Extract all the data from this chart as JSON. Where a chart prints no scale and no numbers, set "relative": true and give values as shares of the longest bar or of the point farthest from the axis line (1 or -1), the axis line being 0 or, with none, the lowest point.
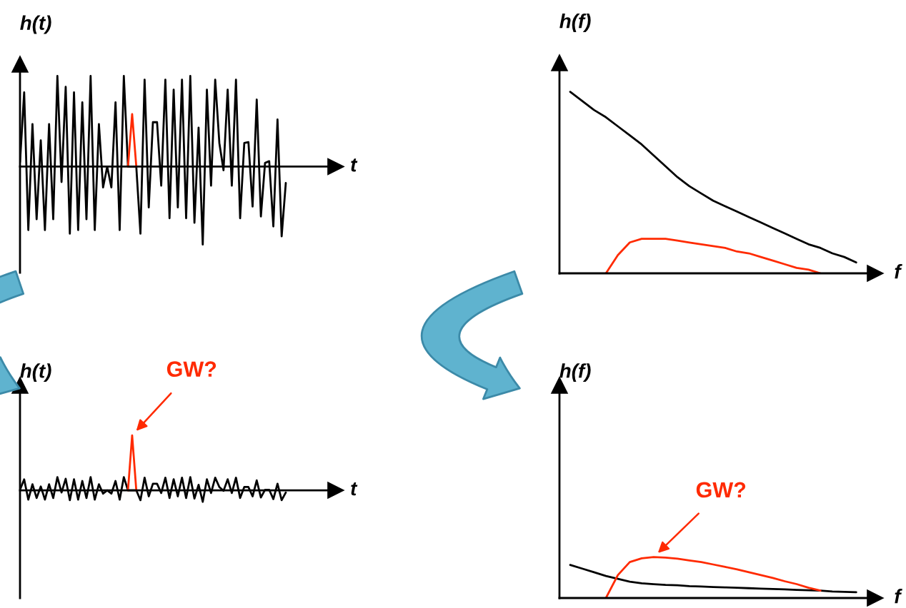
{
  "chart_data": [
    {
      "type": "line",
      "relative": true,
      "ylabel": "h(t)",
      "xlabel": "t",
      "categories": [
        null,
        null,
        null,
        null,
        null,
        null,
        null,
        null,
        null,
        null,
        null,
        null,
        null,
        null,
        null,
        null,
        null,
        null,
        null,
        null,
        null,
        null,
        null,
        null,
        null,
        null,
        null,
        null,
        null,
        null,
        null,
        null,
        null,
        null,
        null,
        null,
        null,
        null,
        null,
        null,
        null,
        null,
        null,
        null,
        null,
        null,
        null,
        null,
        null,
        null,
        null,
        null,
        null,
        null,
        null,
        null,
        null,
        null,
        null,
        null,
        null,
        null,
        null,
        null,
        null
      ],
      "series": [
        {
          "color": "#000000",
          "values": [
            0.05,
            0.82,
            -0.7,
            0.47,
            -0.58,
            0.29,
            -0.7,
            0.47,
            -0.58,
            1.0,
            -0.17,
            0.88,
            -0.74,
            0.82,
            -0.7,
            0.71,
            -0.58,
            1.0,
            -0.7,
            0.47,
            -0.23,
            0,
            -0.23,
            0.71,
            -0.7,
            1.0,
            0,
            0,
            0,
            -0.74,
            0.96,
            -0.45,
            0.49,
            0.49,
            -0.21,
            0.96,
            -0.57,
            0.85,
            -0.45,
            0.96,
            -0.57,
            1.0,
            -0.62,
            0.43,
            -0.86,
            0.85,
            -0.21,
            0.96,
            0.26,
            -0.04,
            0.85,
            -0.21,
            0.96,
            -0.57,
            0.26,
            0.27,
            -0.44,
            0.74,
            -0.55,
            0.04,
            0.06,
            -0.66,
            0.52,
            -0.77,
            -0.18
          ]
        },
        {
          "color": "#ff2a00",
          "values": [
            null,
            null,
            null,
            null,
            null,
            null,
            null,
            null,
            null,
            null,
            null,
            null,
            null,
            null,
            null,
            null,
            null,
            null,
            null,
            null,
            null,
            null,
            null,
            null,
            null,
            null,
            0,
            0.58,
            0,
            null,
            null,
            null,
            null,
            null,
            null,
            null,
            null,
            null,
            null,
            null,
            null,
            null,
            null,
            null,
            null,
            null,
            null,
            null,
            null,
            null,
            null,
            null,
            null,
            null,
            null,
            null,
            null,
            null,
            null,
            null,
            null,
            null,
            null,
            null,
            null
          ]
        }
      ]
    },
    {
      "type": "line",
      "relative": true,
      "ylabel": "h(f)",
      "xlabel": "f",
      "categories": [
        null,
        null,
        null,
        null,
        null,
        null,
        null,
        null,
        null,
        null,
        null,
        null,
        null,
        null,
        null,
        null,
        null,
        null,
        null,
        null,
        null,
        null,
        null,
        null,
        null
      ],
      "series": [
        {
          "color": "#000000",
          "values": [
            1.0,
            0.95,
            0.9,
            0.86,
            0.81,
            0.76,
            0.71,
            0.65,
            0.59,
            0.53,
            0.48,
            0.44,
            0.4,
            0.37,
            0.34,
            0.31,
            0.28,
            0.25,
            0.22,
            0.19,
            0.16,
            0.14,
            0.11,
            0.09,
            0.06
          ]
        },
        {
          "color": "#ff2a00",
          "values": [
            null,
            null,
            null,
            0,
            0.1,
            0.17,
            0.19,
            0.19,
            0.19,
            0.18,
            0.17,
            0.16,
            0.15,
            0.14,
            0.12,
            0.11,
            0.09,
            0.07,
            0.05,
            0.03,
            0.02,
            0,
            null,
            null,
            null
          ]
        }
      ]
    },
    {
      "type": "line",
      "relative": true,
      "ylabel": "h(t)",
      "xlabel": "t",
      "annotations": [
        "GW?"
      ],
      "categories": [
        null,
        null,
        null,
        null,
        null,
        null,
        null,
        null,
        null,
        null,
        null,
        null,
        null,
        null,
        null,
        null,
        null,
        null,
        null,
        null,
        null,
        null,
        null,
        null,
        null,
        null,
        null,
        null,
        null,
        null,
        null,
        null,
        null,
        null,
        null,
        null,
        null,
        null,
        null,
        null,
        null,
        null,
        null,
        null,
        null,
        null,
        null,
        null,
        null,
        null,
        null,
        null,
        null,
        null,
        null,
        null,
        null,
        null,
        null,
        null,
        null,
        null,
        null,
        null,
        null
      ],
      "series": [
        {
          "color": "#000000",
          "values": [
            0.01,
            0.2,
            -0.17,
            0.11,
            -0.14,
            0.07,
            -0.17,
            0.11,
            -0.14,
            0.24,
            -0.04,
            0.21,
            -0.18,
            0.2,
            -0.17,
            0.17,
            -0.14,
            0.24,
            -0.17,
            0.11,
            -0.06,
            0,
            -0.06,
            0.17,
            -0.17,
            0.24,
            0,
            0,
            0,
            -0.18,
            0.23,
            -0.11,
            0.12,
            0.12,
            -0.05,
            0.23,
            -0.14,
            0.2,
            -0.11,
            0.23,
            -0.14,
            0.24,
            -0.15,
            0.1,
            -0.21,
            0.2,
            -0.05,
            0.23,
            0.06,
            -0.01,
            0.2,
            -0.05,
            0.23,
            -0.14,
            0.06,
            0.06,
            -0.11,
            0.18,
            -0.13,
            0.01,
            0.01,
            -0.16,
            0.12,
            -0.18,
            -0.04
          ]
        },
        {
          "color": "#ff2a00",
          "values": [
            null,
            null,
            null,
            null,
            null,
            null,
            null,
            null,
            null,
            null,
            null,
            null,
            null,
            null,
            null,
            null,
            null,
            null,
            null,
            null,
            null,
            null,
            null,
            null,
            null,
            null,
            0,
            1.0,
            0,
            null,
            null,
            null,
            null,
            null,
            null,
            null,
            null,
            null,
            null,
            null,
            null,
            null,
            null,
            null,
            null,
            null,
            null,
            null,
            null,
            null,
            null,
            null,
            null,
            null,
            null,
            null,
            null,
            null,
            null,
            null,
            null,
            null,
            null,
            null,
            null
          ]
        }
      ]
    },
    {
      "type": "line",
      "relative": true,
      "ylabel": "h(f)",
      "xlabel": "f",
      "annotations": [
        "GW?"
      ],
      "categories": [
        null,
        null,
        null,
        null,
        null,
        null,
        null,
        null,
        null,
        null,
        null,
        null,
        null,
        null,
        null,
        null,
        null,
        null,
        null,
        null,
        null,
        null,
        null,
        null,
        null
      ],
      "series": [
        {
          "color": "#000000",
          "values": [
            0.81,
            0.72,
            0.63,
            0.54,
            0.47,
            0.4,
            0.36,
            0.34,
            0.32,
            0.31,
            0.29,
            0.28,
            0.27,
            0.26,
            0.25,
            0.24,
            0.23,
            0.22,
            0.21,
            0.2,
            0.19,
            0.18,
            0.16,
            0.15,
            0.14
          ]
        },
        {
          "color": "#ff2a00",
          "values": [
            null,
            null,
            null,
            0,
            0.56,
            0.88,
            0.97,
            1.0,
            0.99,
            0.96,
            0.92,
            0.88,
            0.82,
            0.76,
            0.7,
            0.63,
            0.56,
            0.49,
            0.41,
            0.34,
            0.25,
            0.18,
            null,
            null,
            null
          ]
        }
      ]
    }
  ]
}
